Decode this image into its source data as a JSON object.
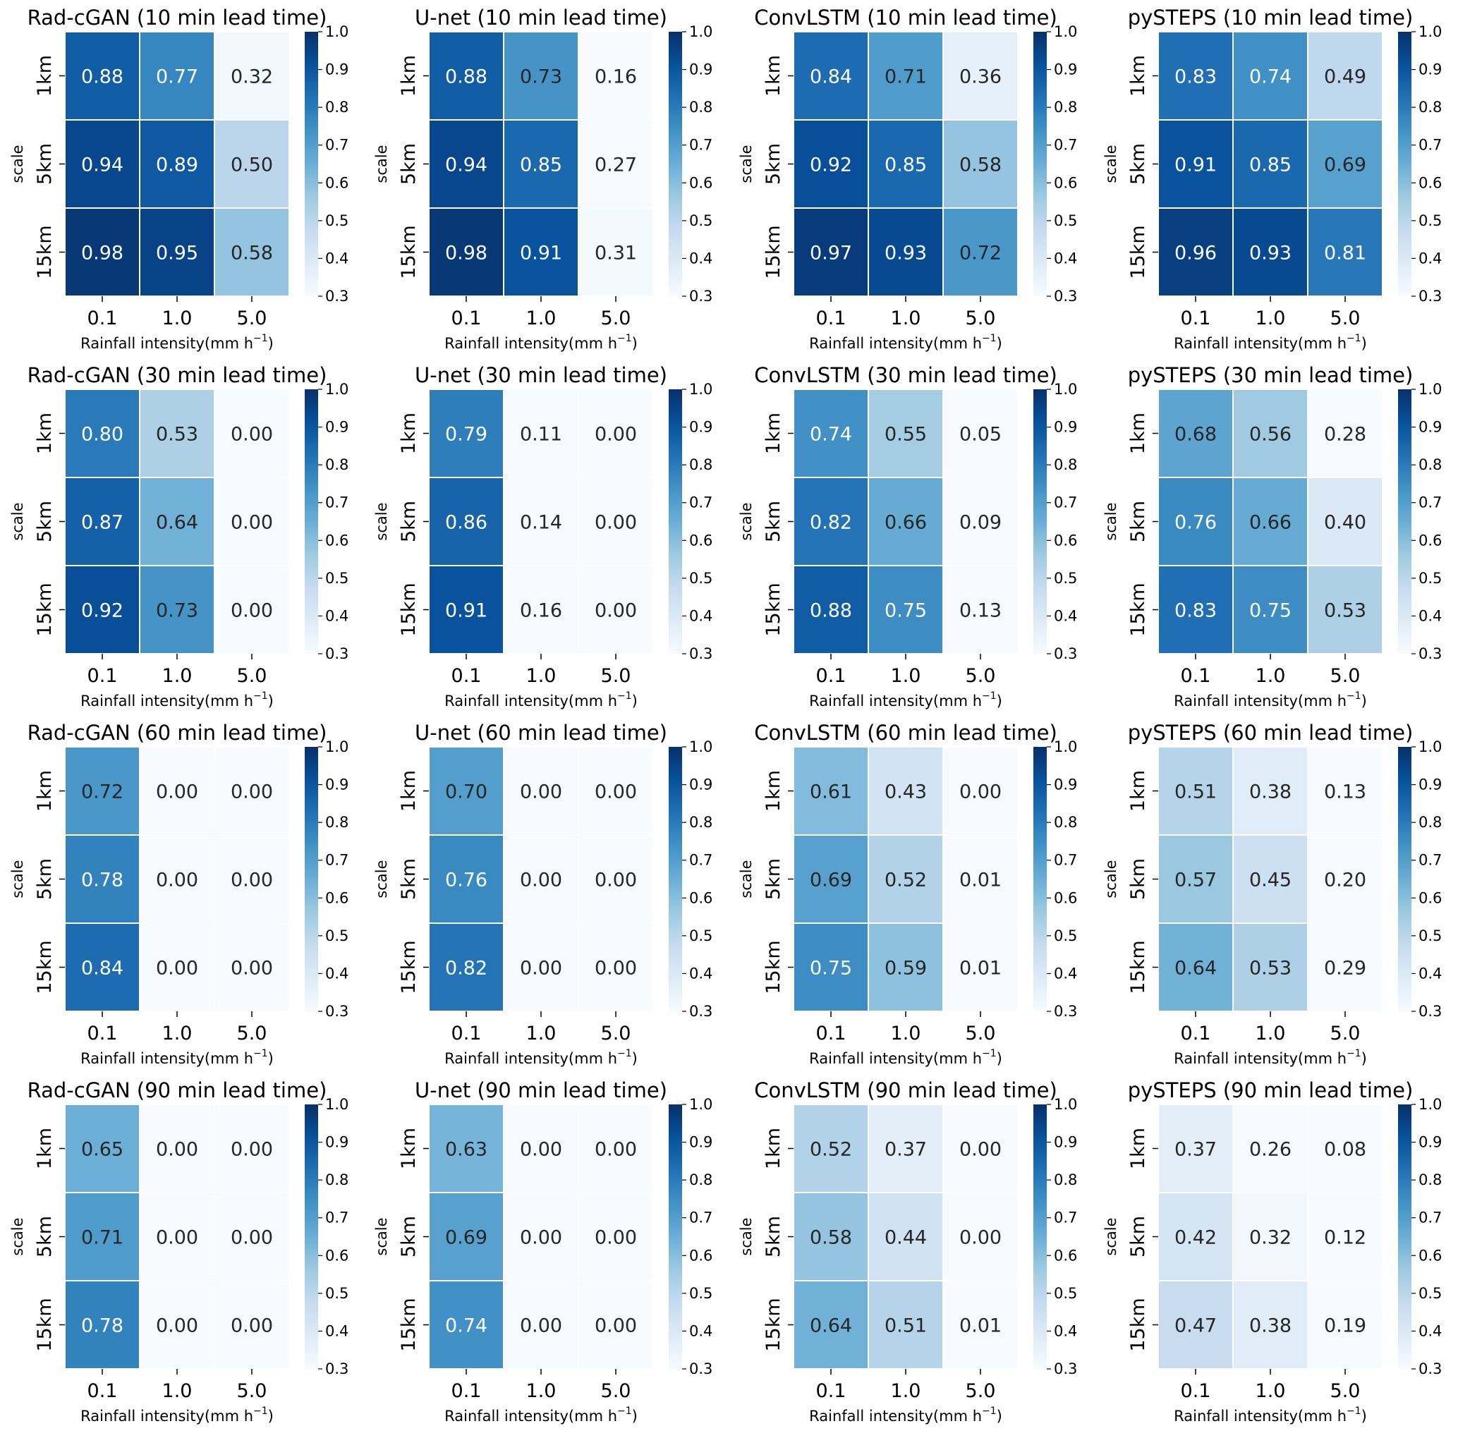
{
  "chart_data": [
    {
      "type": "heatmap",
      "title": "Rad-cGAN (10 min lead time)",
      "xlabel": "Rainfall intensity(mm h",
      "xlabel_sup": "−1",
      "xlabel_close": ")",
      "ylabel": "scale",
      "x_categories": [
        "0.1",
        "1.0",
        "5.0"
      ],
      "y_categories": [
        "1km",
        "5km",
        "15km"
      ],
      "values": [
        [
          0.88,
          0.77,
          0.32
        ],
        [
          0.94,
          0.89,
          0.5
        ],
        [
          0.98,
          0.95,
          0.58
        ]
      ],
      "colorbar": {
        "min": 0.3,
        "max": 1.0,
        "ticks": [
          "0.3",
          "0.4",
          "0.5",
          "0.6",
          "0.7",
          "0.8",
          "0.9",
          "1.0"
        ]
      }
    },
    {
      "type": "heatmap",
      "title": "U-net (10 min lead time)",
      "xlabel": "Rainfall intensity(mm h",
      "xlabel_sup": "−1",
      "xlabel_close": ")",
      "ylabel": "scale",
      "x_categories": [
        "0.1",
        "1.0",
        "5.0"
      ],
      "y_categories": [
        "1km",
        "5km",
        "15km"
      ],
      "values": [
        [
          0.88,
          0.73,
          0.16
        ],
        [
          0.94,
          0.85,
          0.27
        ],
        [
          0.98,
          0.91,
          0.31
        ]
      ],
      "colorbar": {
        "min": 0.3,
        "max": 1.0,
        "ticks": [
          "0.3",
          "0.4",
          "0.5",
          "0.6",
          "0.7",
          "0.8",
          "0.9",
          "1.0"
        ]
      }
    },
    {
      "type": "heatmap",
      "title": "ConvLSTM (10 min lead time)",
      "xlabel": "Rainfall intensity(mm h",
      "xlabel_sup": "−1",
      "xlabel_close": ")",
      "ylabel": "scale",
      "x_categories": [
        "0.1",
        "1.0",
        "5.0"
      ],
      "y_categories": [
        "1km",
        "5km",
        "15km"
      ],
      "values": [
        [
          0.84,
          0.71,
          0.36
        ],
        [
          0.92,
          0.85,
          0.58
        ],
        [
          0.97,
          0.93,
          0.72
        ]
      ],
      "colorbar": {
        "min": 0.3,
        "max": 1.0,
        "ticks": [
          "0.3",
          "0.4",
          "0.5",
          "0.6",
          "0.7",
          "0.8",
          "0.9",
          "1.0"
        ]
      }
    },
    {
      "type": "heatmap",
      "title": "pySTEPS (10 min lead time)",
      "xlabel": "Rainfall intensity(mm h",
      "xlabel_sup": "−1",
      "xlabel_close": ")",
      "ylabel": "scale",
      "x_categories": [
        "0.1",
        "1.0",
        "5.0"
      ],
      "y_categories": [
        "1km",
        "5km",
        "15km"
      ],
      "values": [
        [
          0.83,
          0.74,
          0.49
        ],
        [
          0.91,
          0.85,
          0.69
        ],
        [
          0.96,
          0.93,
          0.81
        ]
      ],
      "colorbar": {
        "min": 0.3,
        "max": 1.0,
        "ticks": [
          "0.3",
          "0.4",
          "0.5",
          "0.6",
          "0.7",
          "0.8",
          "0.9",
          "1.0"
        ]
      }
    },
    {
      "type": "heatmap",
      "title": "Rad-cGAN (30 min lead time)",
      "xlabel": "Rainfall intensity(mm h",
      "xlabel_sup": "−1",
      "xlabel_close": ")",
      "ylabel": "scale",
      "x_categories": [
        "0.1",
        "1.0",
        "5.0"
      ],
      "y_categories": [
        "1km",
        "5km",
        "15km"
      ],
      "values": [
        [
          0.8,
          0.53,
          0.0
        ],
        [
          0.87,
          0.64,
          0.0
        ],
        [
          0.92,
          0.73,
          0.0
        ]
      ],
      "colorbar": {
        "min": 0.3,
        "max": 1.0,
        "ticks": [
          "0.3",
          "0.4",
          "0.5",
          "0.6",
          "0.7",
          "0.8",
          "0.9",
          "1.0"
        ]
      }
    },
    {
      "type": "heatmap",
      "title": "U-net (30 min lead time)",
      "xlabel": "Rainfall intensity(mm h",
      "xlabel_sup": "−1",
      "xlabel_close": ")",
      "ylabel": "scale",
      "x_categories": [
        "0.1",
        "1.0",
        "5.0"
      ],
      "y_categories": [
        "1km",
        "5km",
        "15km"
      ],
      "values": [
        [
          0.79,
          0.11,
          0.0
        ],
        [
          0.86,
          0.14,
          0.0
        ],
        [
          0.91,
          0.16,
          0.0
        ]
      ],
      "colorbar": {
        "min": 0.3,
        "max": 1.0,
        "ticks": [
          "0.3",
          "0.4",
          "0.5",
          "0.6",
          "0.7",
          "0.8",
          "0.9",
          "1.0"
        ]
      }
    },
    {
      "type": "heatmap",
      "title": "ConvLSTM (30 min lead time)",
      "xlabel": "Rainfall intensity(mm h",
      "xlabel_sup": "−1",
      "xlabel_close": ")",
      "ylabel": "scale",
      "x_categories": [
        "0.1",
        "1.0",
        "5.0"
      ],
      "y_categories": [
        "1km",
        "5km",
        "15km"
      ],
      "values": [
        [
          0.74,
          0.55,
          0.05
        ],
        [
          0.82,
          0.66,
          0.09
        ],
        [
          0.88,
          0.75,
          0.13
        ]
      ],
      "colorbar": {
        "min": 0.3,
        "max": 1.0,
        "ticks": [
          "0.3",
          "0.4",
          "0.5",
          "0.6",
          "0.7",
          "0.8",
          "0.9",
          "1.0"
        ]
      }
    },
    {
      "type": "heatmap",
      "title": "pySTEPS (30 min lead time)",
      "xlabel": "Rainfall intensity(mm h",
      "xlabel_sup": "−1",
      "xlabel_close": ")",
      "ylabel": "scale",
      "x_categories": [
        "0.1",
        "1.0",
        "5.0"
      ],
      "y_categories": [
        "1km",
        "5km",
        "15km"
      ],
      "values": [
        [
          0.68,
          0.56,
          0.28
        ],
        [
          0.76,
          0.66,
          0.4
        ],
        [
          0.83,
          0.75,
          0.53
        ]
      ],
      "colorbar": {
        "min": 0.3,
        "max": 1.0,
        "ticks": [
          "0.3",
          "0.4",
          "0.5",
          "0.6",
          "0.7",
          "0.8",
          "0.9",
          "1.0"
        ]
      }
    },
    {
      "type": "heatmap",
      "title": "Rad-cGAN (60 min lead time)",
      "xlabel": "Rainfall intensity(mm h",
      "xlabel_sup": "−1",
      "xlabel_close": ")",
      "ylabel": "scale",
      "x_categories": [
        "0.1",
        "1.0",
        "5.0"
      ],
      "y_categories": [
        "1km",
        "5km",
        "15km"
      ],
      "values": [
        [
          0.72,
          0.0,
          0.0
        ],
        [
          0.78,
          0.0,
          0.0
        ],
        [
          0.84,
          0.0,
          0.0
        ]
      ],
      "colorbar": {
        "min": 0.3,
        "max": 1.0,
        "ticks": [
          "0.3",
          "0.4",
          "0.5",
          "0.6",
          "0.7",
          "0.8",
          "0.9",
          "1.0"
        ]
      }
    },
    {
      "type": "heatmap",
      "title": "U-net (60 min lead time)",
      "xlabel": "Rainfall intensity(mm h",
      "xlabel_sup": "−1",
      "xlabel_close": ")",
      "ylabel": "scale",
      "x_categories": [
        "0.1",
        "1.0",
        "5.0"
      ],
      "y_categories": [
        "1km",
        "5km",
        "15km"
      ],
      "values": [
        [
          0.7,
          0.0,
          0.0
        ],
        [
          0.76,
          0.0,
          0.0
        ],
        [
          0.82,
          0.0,
          0.0
        ]
      ],
      "colorbar": {
        "min": 0.3,
        "max": 1.0,
        "ticks": [
          "0.3",
          "0.4",
          "0.5",
          "0.6",
          "0.7",
          "0.8",
          "0.9",
          "1.0"
        ]
      }
    },
    {
      "type": "heatmap",
      "title": "ConvLSTM (60 min lead time)",
      "xlabel": "Rainfall intensity(mm h",
      "xlabel_sup": "−1",
      "xlabel_close": ")",
      "ylabel": "scale",
      "x_categories": [
        "0.1",
        "1.0",
        "5.0"
      ],
      "y_categories": [
        "1km",
        "5km",
        "15km"
      ],
      "values": [
        [
          0.61,
          0.43,
          0.0
        ],
        [
          0.69,
          0.52,
          0.01
        ],
        [
          0.75,
          0.59,
          0.01
        ]
      ],
      "colorbar": {
        "min": 0.3,
        "max": 1.0,
        "ticks": [
          "0.3",
          "0.4",
          "0.5",
          "0.6",
          "0.7",
          "0.8",
          "0.9",
          "1.0"
        ]
      }
    },
    {
      "type": "heatmap",
      "title": "pySTEPS (60 min lead time)",
      "xlabel": "Rainfall intensity(mm h",
      "xlabel_sup": "−1",
      "xlabel_close": ")",
      "ylabel": "scale",
      "x_categories": [
        "0.1",
        "1.0",
        "5.0"
      ],
      "y_categories": [
        "1km",
        "5km",
        "15km"
      ],
      "values": [
        [
          0.51,
          0.38,
          0.13
        ],
        [
          0.57,
          0.45,
          0.2
        ],
        [
          0.64,
          0.53,
          0.29
        ]
      ],
      "colorbar": {
        "min": 0.3,
        "max": 1.0,
        "ticks": [
          "0.3",
          "0.4",
          "0.5",
          "0.6",
          "0.7",
          "0.8",
          "0.9",
          "1.0"
        ]
      }
    },
    {
      "type": "heatmap",
      "title": "Rad-cGAN (90 min lead time)",
      "xlabel": "Rainfall intensity(mm h",
      "xlabel_sup": "−1",
      "xlabel_close": ")",
      "ylabel": "scale",
      "x_categories": [
        "0.1",
        "1.0",
        "5.0"
      ],
      "y_categories": [
        "1km",
        "5km",
        "15km"
      ],
      "values": [
        [
          0.65,
          0.0,
          0.0
        ],
        [
          0.71,
          0.0,
          0.0
        ],
        [
          0.78,
          0.0,
          0.0
        ]
      ],
      "colorbar": {
        "min": 0.3,
        "max": 1.0,
        "ticks": [
          "0.3",
          "0.4",
          "0.5",
          "0.6",
          "0.7",
          "0.8",
          "0.9",
          "1.0"
        ]
      }
    },
    {
      "type": "heatmap",
      "title": "U-net (90 min lead time)",
      "xlabel": "Rainfall intensity(mm h",
      "xlabel_sup": "−1",
      "xlabel_close": ")",
      "ylabel": "scale",
      "x_categories": [
        "0.1",
        "1.0",
        "5.0"
      ],
      "y_categories": [
        "1km",
        "5km",
        "15km"
      ],
      "values": [
        [
          0.63,
          0.0,
          0.0
        ],
        [
          0.69,
          0.0,
          0.0
        ],
        [
          0.74,
          0.0,
          0.0
        ]
      ],
      "colorbar": {
        "min": 0.3,
        "max": 1.0,
        "ticks": [
          "0.3",
          "0.4",
          "0.5",
          "0.6",
          "0.7",
          "0.8",
          "0.9",
          "1.0"
        ]
      }
    },
    {
      "type": "heatmap",
      "title": "ConvLSTM (90 min lead time)",
      "xlabel": "Rainfall intensity(mm h",
      "xlabel_sup": "−1",
      "xlabel_close": ")",
      "ylabel": "scale",
      "x_categories": [
        "0.1",
        "1.0",
        "5.0"
      ],
      "y_categories": [
        "1km",
        "5km",
        "15km"
      ],
      "values": [
        [
          0.52,
          0.37,
          0.0
        ],
        [
          0.58,
          0.44,
          0.0
        ],
        [
          0.64,
          0.51,
          0.01
        ]
      ],
      "colorbar": {
        "min": 0.3,
        "max": 1.0,
        "ticks": [
          "0.3",
          "0.4",
          "0.5",
          "0.6",
          "0.7",
          "0.8",
          "0.9",
          "1.0"
        ]
      }
    },
    {
      "type": "heatmap",
      "title": "pySTEPS (90 min lead time)",
      "xlabel": "Rainfall intensity(mm h",
      "xlabel_sup": "−1",
      "xlabel_close": ")",
      "ylabel": "scale",
      "x_categories": [
        "0.1",
        "1.0",
        "5.0"
      ],
      "y_categories": [
        "1km",
        "5km",
        "15km"
      ],
      "values": [
        [
          0.37,
          0.26,
          0.08
        ],
        [
          0.42,
          0.32,
          0.12
        ],
        [
          0.47,
          0.38,
          0.19
        ]
      ],
      "colorbar": {
        "min": 0.3,
        "max": 1.0,
        "ticks": [
          "0.3",
          "0.4",
          "0.5",
          "0.6",
          "0.7",
          "0.8",
          "0.9",
          "1.0"
        ]
      }
    }
  ],
  "colormap": {
    "name": "Blues",
    "stops": [
      "#f7fbff",
      "#deebf7",
      "#c6dbef",
      "#9ecae1",
      "#6baed6",
      "#4292c6",
      "#2171b5",
      "#08519c",
      "#08306b"
    ],
    "dark_text_color": "#262626",
    "light_text_color": "#ffffff",
    "cell_border_color": "#ffffff"
  }
}
